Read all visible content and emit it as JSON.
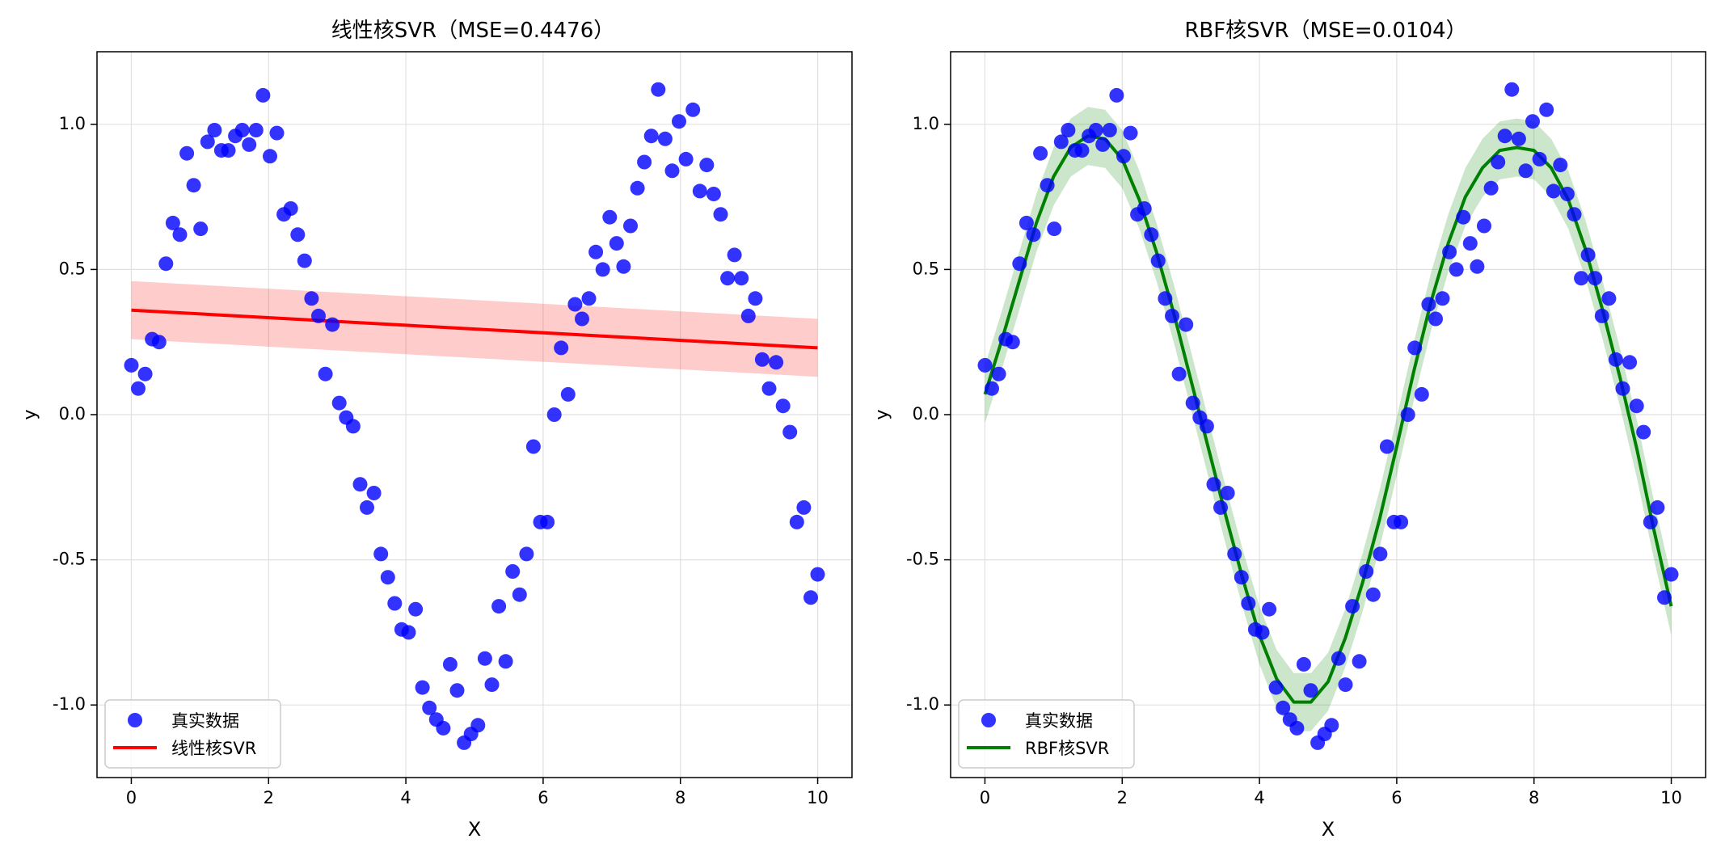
{
  "figure": {
    "background": "#ffffff"
  },
  "chart_data": [
    {
      "type": "scatter",
      "title": "线性核SVR（MSE=0.4476）",
      "xlabel": "X",
      "ylabel": "y",
      "xlim": [
        -0.5,
        10.5
      ],
      "ylim": [
        -1.25,
        1.25
      ],
      "xticks": [
        0,
        2,
        4,
        6,
        8,
        10
      ],
      "xtick_labels": [
        "0",
        "2",
        "4",
        "6",
        "8",
        "10"
      ],
      "yticks": [
        -1.0,
        -0.5,
        0.0,
        0.5,
        1.0
      ],
      "ytick_labels": [
        "-1.0",
        "-0.5",
        "0.0",
        "0.5",
        "1.0"
      ],
      "grid": true,
      "legend_position": "lower-left",
      "series": [
        {
          "name": "真实数据",
          "kind": "scatter",
          "color": "#0000ff",
          "x": [
            0.0,
            0.101,
            0.202,
            0.303,
            0.404,
            0.505,
            0.606,
            0.707,
            0.808,
            0.909,
            1.01,
            1.111,
            1.212,
            1.313,
            1.414,
            1.515,
            1.616,
            1.717,
            1.818,
            1.919,
            2.02,
            2.121,
            2.222,
            2.323,
            2.424,
            2.525,
            2.626,
            2.727,
            2.828,
            2.929,
            3.03,
            3.131,
            3.232,
            3.333,
            3.434,
            3.535,
            3.636,
            3.737,
            3.838,
            3.939,
            4.04,
            4.141,
            4.242,
            4.343,
            4.444,
            4.545,
            4.646,
            4.747,
            4.848,
            4.949,
            5.051,
            5.152,
            5.253,
            5.354,
            5.455,
            5.556,
            5.657,
            5.758,
            5.859,
            5.96,
            6.061,
            6.162,
            6.263,
            6.364,
            6.465,
            6.566,
            6.667,
            6.768,
            6.869,
            6.97,
            7.071,
            7.172,
            7.273,
            7.374,
            7.475,
            7.576,
            7.677,
            7.778,
            7.879,
            7.98,
            8.081,
            8.182,
            8.283,
            8.384,
            8.485,
            8.586,
            8.687,
            8.788,
            8.889,
            8.99,
            9.091,
            9.192,
            9.293,
            9.394,
            9.495,
            9.596,
            9.697,
            9.798,
            9.899,
            10.0
          ],
          "y": [
            0.17,
            0.09,
            0.14,
            0.26,
            0.25,
            0.52,
            0.66,
            0.62,
            0.9,
            0.79,
            0.64,
            0.94,
            0.98,
            0.91,
            0.91,
            0.96,
            0.98,
            0.93,
            0.98,
            1.1,
            0.89,
            0.97,
            0.69,
            0.71,
            0.62,
            0.53,
            0.4,
            0.34,
            0.14,
            0.31,
            0.04,
            -0.01,
            -0.04,
            -0.24,
            -0.32,
            -0.27,
            -0.48,
            -0.56,
            -0.65,
            -0.74,
            -0.75,
            -0.67,
            -0.94,
            -1.01,
            -1.05,
            -1.08,
            -0.86,
            -0.95,
            -1.13,
            -1.1,
            -1.07,
            -0.84,
            -0.93,
            -0.66,
            -0.85,
            -0.54,
            -0.62,
            -0.48,
            -0.11,
            -0.37,
            -0.37,
            0.0,
            0.23,
            0.07,
            0.38,
            0.33,
            0.4,
            0.56,
            0.5,
            0.68,
            0.59,
            0.51,
            0.65,
            0.78,
            0.87,
            0.96,
            1.12,
            0.95,
            0.84,
            1.01,
            0.88,
            1.05,
            0.77,
            0.86,
            0.76,
            0.69,
            0.47,
            0.55,
            0.47,
            0.34,
            0.4,
            0.19,
            0.09,
            0.18,
            0.03,
            -0.06,
            -0.37,
            -0.32,
            -0.63,
            -0.55
          ]
        },
        {
          "name": "线性核SVR",
          "kind": "line",
          "color": "#ff0000",
          "x": [
            0,
            10
          ],
          "y": [
            0.36,
            0.23
          ],
          "band_color": "#ff0000",
          "band_upper": [
            0.46,
            0.33
          ],
          "band_lower": [
            0.26,
            0.13
          ]
        }
      ]
    },
    {
      "type": "scatter",
      "title": "RBF核SVR（MSE=0.0104）",
      "xlabel": "X",
      "ylabel": "y",
      "xlim": [
        -0.5,
        10.5
      ],
      "ylim": [
        -1.25,
        1.25
      ],
      "xticks": [
        0,
        2,
        4,
        6,
        8,
        10
      ],
      "xtick_labels": [
        "0",
        "2",
        "4",
        "6",
        "8",
        "10"
      ],
      "yticks": [
        -1.0,
        -0.5,
        0.0,
        0.5,
        1.0
      ],
      "ytick_labels": [
        "-1.0",
        "-0.5",
        "0.0",
        "0.5",
        "1.0"
      ],
      "grid": true,
      "legend_position": "lower-left",
      "series": [
        {
          "name": "真实数据",
          "kind": "scatter",
          "color": "#0000ff",
          "x": [
            0.0,
            0.101,
            0.202,
            0.303,
            0.404,
            0.505,
            0.606,
            0.707,
            0.808,
            0.909,
            1.01,
            1.111,
            1.212,
            1.313,
            1.414,
            1.515,
            1.616,
            1.717,
            1.818,
            1.919,
            2.02,
            2.121,
            2.222,
            2.323,
            2.424,
            2.525,
            2.626,
            2.727,
            2.828,
            2.929,
            3.03,
            3.131,
            3.232,
            3.333,
            3.434,
            3.535,
            3.636,
            3.737,
            3.838,
            3.939,
            4.04,
            4.141,
            4.242,
            4.343,
            4.444,
            4.545,
            4.646,
            4.747,
            4.848,
            4.949,
            5.051,
            5.152,
            5.253,
            5.354,
            5.455,
            5.556,
            5.657,
            5.758,
            5.859,
            5.96,
            6.061,
            6.162,
            6.263,
            6.364,
            6.465,
            6.566,
            6.667,
            6.768,
            6.869,
            6.97,
            7.071,
            7.172,
            7.273,
            7.374,
            7.475,
            7.576,
            7.677,
            7.778,
            7.879,
            7.98,
            8.081,
            8.182,
            8.283,
            8.384,
            8.485,
            8.586,
            8.687,
            8.788,
            8.889,
            8.99,
            9.091,
            9.192,
            9.293,
            9.394,
            9.495,
            9.596,
            9.697,
            9.798,
            9.899,
            10.0
          ],
          "y": [
            0.17,
            0.09,
            0.14,
            0.26,
            0.25,
            0.52,
            0.66,
            0.62,
            0.9,
            0.79,
            0.64,
            0.94,
            0.98,
            0.91,
            0.91,
            0.96,
            0.98,
            0.93,
            0.98,
            1.1,
            0.89,
            0.97,
            0.69,
            0.71,
            0.62,
            0.53,
            0.4,
            0.34,
            0.14,
            0.31,
            0.04,
            -0.01,
            -0.04,
            -0.24,
            -0.32,
            -0.27,
            -0.48,
            -0.56,
            -0.65,
            -0.74,
            -0.75,
            -0.67,
            -0.94,
            -1.01,
            -1.05,
            -1.08,
            -0.86,
            -0.95,
            -1.13,
            -1.1,
            -1.07,
            -0.84,
            -0.93,
            -0.66,
            -0.85,
            -0.54,
            -0.62,
            -0.48,
            -0.11,
            -0.37,
            -0.37,
            0.0,
            0.23,
            0.07,
            0.38,
            0.33,
            0.4,
            0.56,
            0.5,
            0.68,
            0.59,
            0.51,
            0.65,
            0.78,
            0.87,
            0.96,
            1.12,
            0.95,
            0.84,
            1.01,
            0.88,
            1.05,
            0.77,
            0.86,
            0.76,
            0.69,
            0.47,
            0.55,
            0.47,
            0.34,
            0.4,
            0.19,
            0.09,
            0.18,
            0.03,
            -0.06,
            -0.37,
            -0.32,
            -0.63,
            -0.55
          ]
        },
        {
          "name": "RBF核SVR",
          "kind": "line",
          "color": "#008000",
          "x": [
            0,
            0.25,
            0.5,
            0.75,
            1.0,
            1.25,
            1.5,
            1.75,
            2.0,
            2.25,
            2.5,
            2.75,
            3.0,
            3.25,
            3.5,
            3.75,
            4.0,
            4.25,
            4.5,
            4.75,
            5.0,
            5.25,
            5.5,
            5.75,
            6.0,
            6.25,
            6.5,
            6.75,
            7.0,
            7.25,
            7.5,
            7.75,
            8.0,
            8.25,
            8.5,
            8.75,
            9.0,
            9.25,
            9.5,
            9.75,
            10.0
          ],
          "y": [
            0.07,
            0.26,
            0.46,
            0.66,
            0.82,
            0.92,
            0.96,
            0.95,
            0.88,
            0.74,
            0.56,
            0.35,
            0.12,
            -0.11,
            -0.34,
            -0.56,
            -0.76,
            -0.91,
            -0.99,
            -0.99,
            -0.92,
            -0.77,
            -0.58,
            -0.36,
            -0.11,
            0.15,
            0.39,
            0.59,
            0.75,
            0.85,
            0.91,
            0.92,
            0.91,
            0.85,
            0.74,
            0.57,
            0.36,
            0.13,
            -0.12,
            -0.4,
            -0.66
          ],
          "band_color": "#008000",
          "band_width": 0.1
        }
      ]
    }
  ]
}
